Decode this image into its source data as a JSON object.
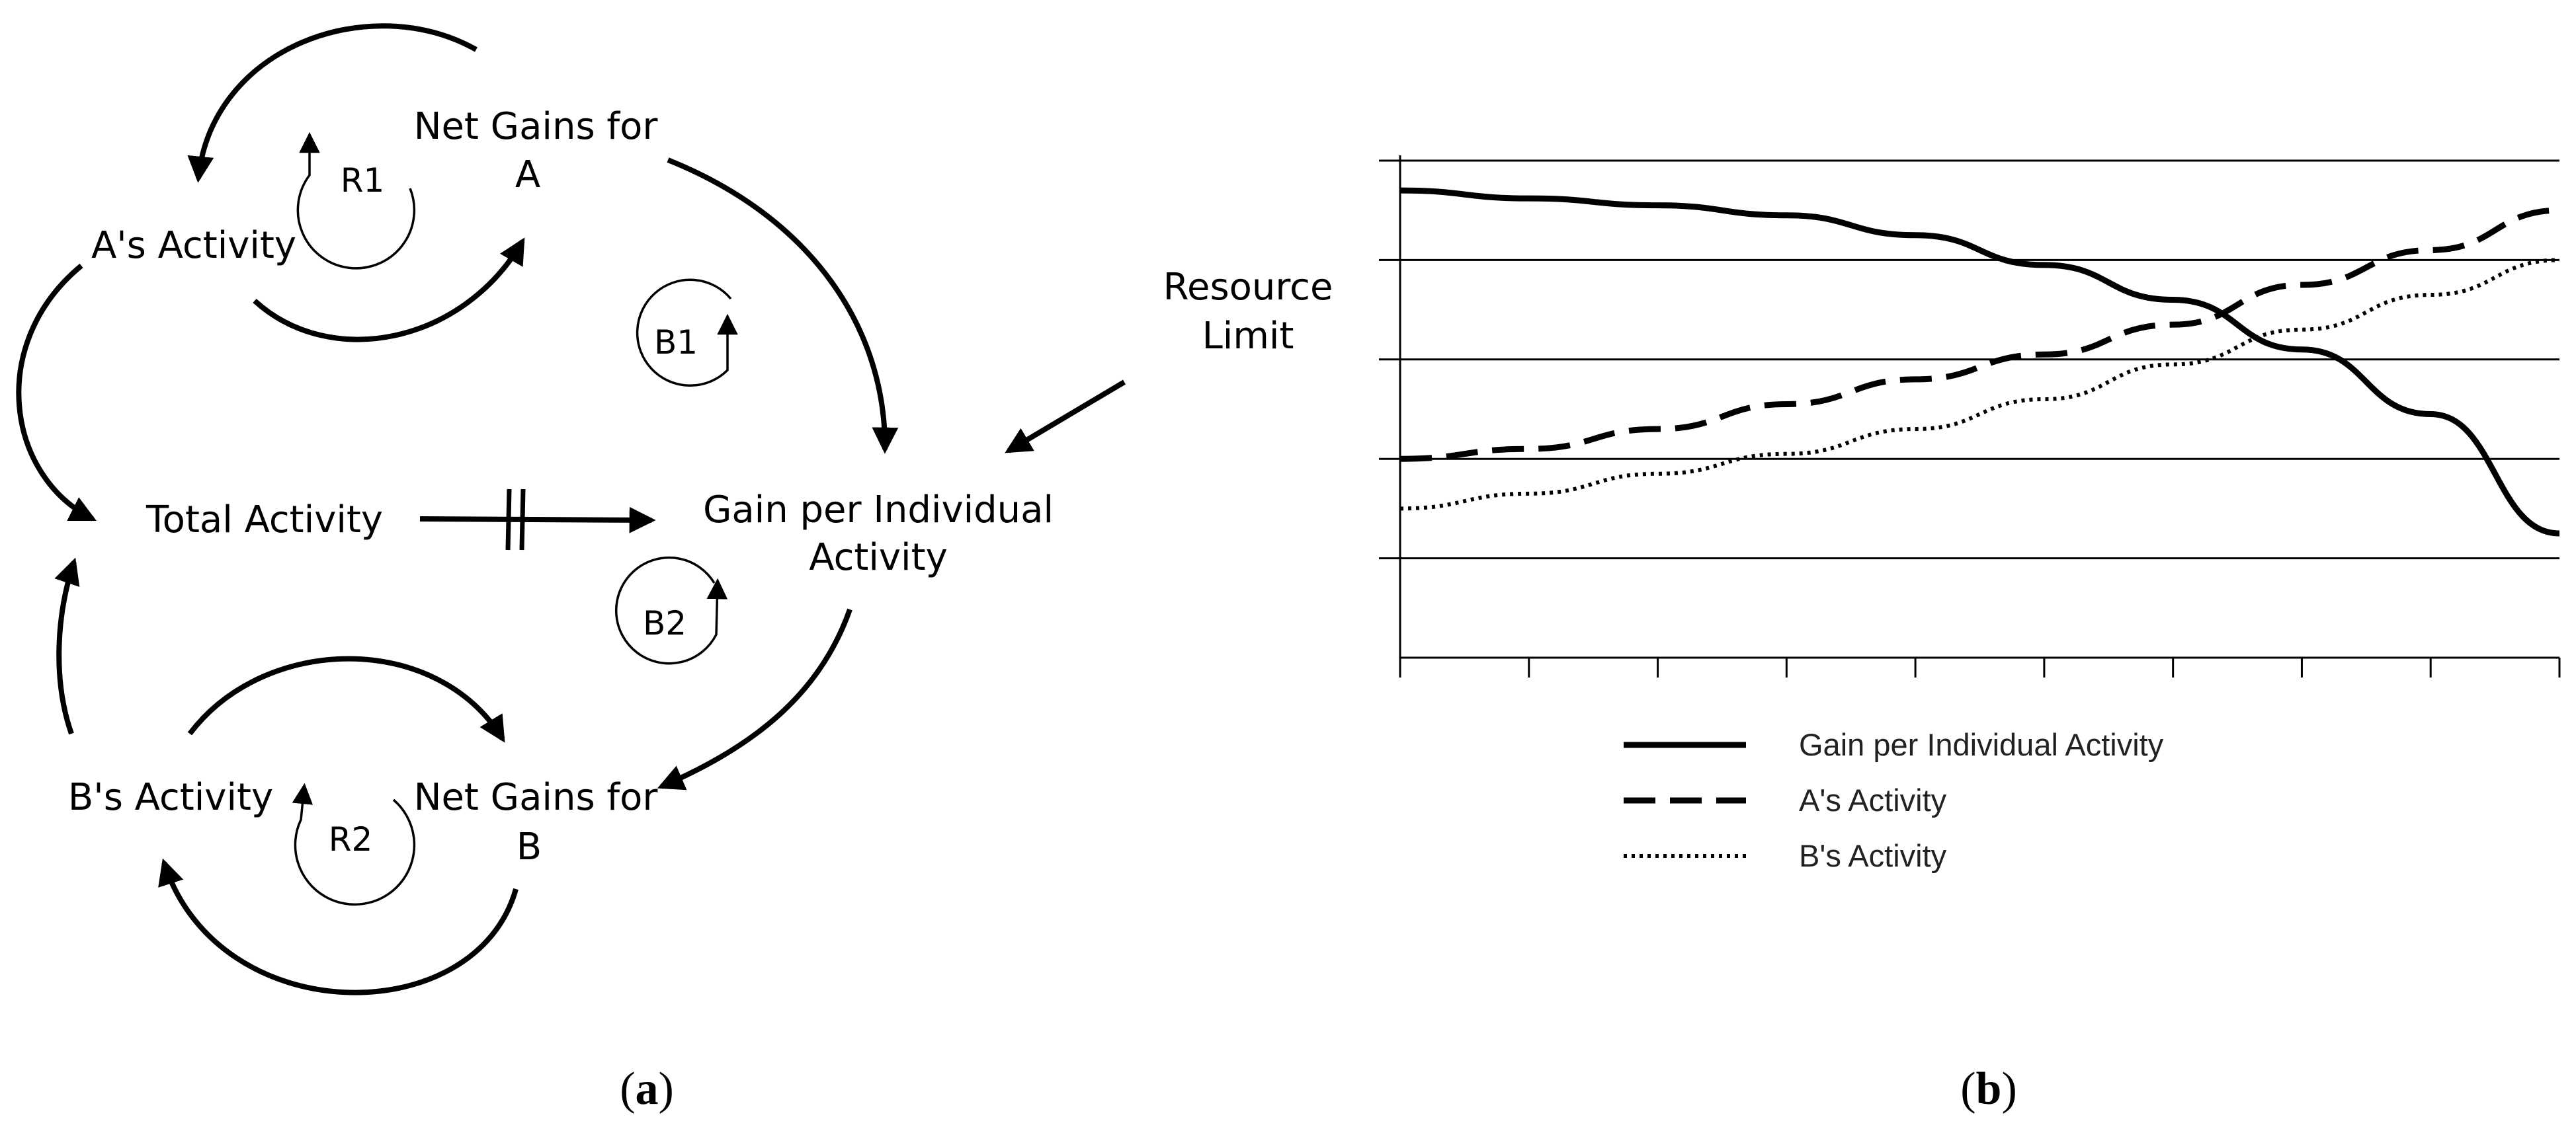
{
  "diagram": {
    "nodes": {
      "a_activity": "A's Activity",
      "net_gains_a_1": "Net Gains for",
      "net_gains_a_2": "A",
      "total_activity": "Total Activity",
      "gain_per_1": "Gain per Individual",
      "gain_per_2": "Activity",
      "b_activity": "B's Activity",
      "net_gains_b_1": "Net Gains for",
      "net_gains_b_2": "B",
      "resource_1": "Resource",
      "resource_2": "Limit"
    },
    "loops": {
      "r1": "R1",
      "r2": "R2",
      "b1": "B1",
      "b2": "B2"
    },
    "caption": {
      "open": "(",
      "letter": "a",
      "close": ")"
    }
  },
  "chart_data": {
    "type": "line",
    "x": [
      0,
      1,
      2,
      3,
      4,
      5,
      6,
      7,
      8,
      9
    ],
    "ylim": [
      0,
      5
    ],
    "grid": true,
    "legend_position": "bottom",
    "series": [
      {
        "name": "Gain per Individual Activity",
        "style": "solid",
        "values": [
          4.7,
          4.62,
          4.55,
          4.45,
          4.25,
          3.95,
          3.6,
          3.1,
          2.45,
          1.25
        ]
      },
      {
        "name": "A's Activity",
        "style": "dashed",
        "values": [
          2.0,
          2.1,
          2.3,
          2.55,
          2.8,
          3.05,
          3.35,
          3.75,
          4.1,
          4.5
        ]
      },
      {
        "name": "B's Activity",
        "style": "dotted",
        "values": [
          1.5,
          1.65,
          1.85,
          2.05,
          2.3,
          2.6,
          2.95,
          3.3,
          3.65,
          4.0
        ]
      }
    ],
    "caption": {
      "open": "(",
      "letter": "b",
      "close": ")"
    }
  }
}
